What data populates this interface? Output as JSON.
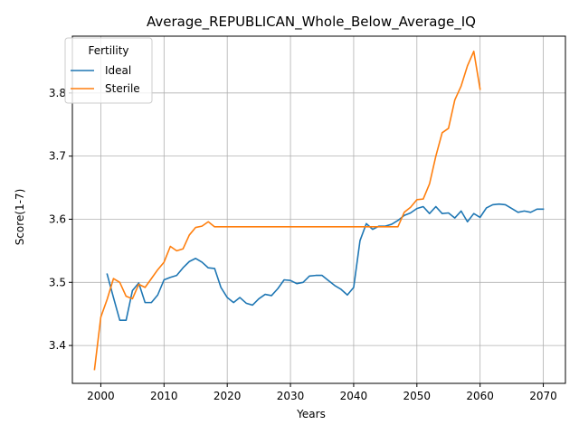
{
  "chart_data": {
    "type": "line",
    "title": "Average_REPUBLICAN_Whole_Below_Average_IQ",
    "xlabel": "Years",
    "ylabel": "Score(1-7)",
    "xlim": [
      1995.5,
      2073.5
    ],
    "ylim": [
      3.34,
      3.89
    ],
    "xticks": [
      2000,
      2010,
      2020,
      2030,
      2040,
      2050,
      2060,
      2070
    ],
    "yticks": [
      3.4,
      3.5,
      3.6,
      3.7,
      3.8
    ],
    "ytick_labels": [
      "3.4",
      "3.5",
      "3.6",
      "3.7",
      "3.8"
    ],
    "grid": true,
    "legend": {
      "title": "Fertility",
      "placement": "top-left"
    },
    "series": [
      {
        "name": "Ideal",
        "color": "#1f77b4",
        "x": [
          2001,
          2002,
          2003,
          2004,
          2005,
          2006,
          2007,
          2008,
          2009,
          2010,
          2011,
          2012,
          2013,
          2014,
          2015,
          2016,
          2017,
          2018,
          2019,
          2020,
          2021,
          2022,
          2023,
          2024,
          2025,
          2026,
          2027,
          2028,
          2029,
          2030,
          2031,
          2032,
          2033,
          2034,
          2035,
          2036,
          2037,
          2038,
          2039,
          2040,
          2041,
          2042,
          2043,
          2044,
          2045,
          2046,
          2047,
          2048,
          2049,
          2050,
          2051,
          2052,
          2053,
          2054,
          2055,
          2056,
          2057,
          2058,
          2059,
          2060,
          2061,
          2062,
          2063,
          2064,
          2065,
          2066,
          2067,
          2068,
          2069,
          2070
        ],
        "y": [
          3.513,
          3.476,
          3.44,
          3.44,
          3.487,
          3.499,
          3.468,
          3.468,
          3.48,
          3.504,
          3.508,
          3.511,
          3.523,
          3.533,
          3.538,
          3.532,
          3.523,
          3.522,
          3.492,
          3.476,
          3.468,
          3.476,
          3.467,
          3.464,
          3.474,
          3.481,
          3.479,
          3.49,
          3.504,
          3.503,
          3.498,
          3.5,
          3.51,
          3.511,
          3.511,
          3.503,
          3.495,
          3.489,
          3.48,
          3.492,
          3.566,
          3.593,
          3.584,
          3.589,
          3.589,
          3.592,
          3.598,
          3.606,
          3.61,
          3.617,
          3.62,
          3.609,
          3.62,
          3.609,
          3.61,
          3.602,
          3.613,
          3.596,
          3.609,
          3.603,
          3.618,
          3.623,
          3.624,
          3.623,
          3.617,
          3.611,
          3.613,
          3.611,
          3.616,
          3.616
        ]
      },
      {
        "name": "Sterile",
        "color": "#ff7f0e",
        "x": [
          1999,
          2000,
          2001,
          2002,
          2003,
          2004,
          2005,
          2006,
          2007,
          2008,
          2009,
          2010,
          2011,
          2012,
          2013,
          2014,
          2015,
          2016,
          2017,
          2018,
          2019,
          2020,
          2021,
          2022,
          2023,
          2024,
          2025,
          2026,
          2027,
          2028,
          2029,
          2030,
          2031,
          2032,
          2033,
          2034,
          2035,
          2036,
          2037,
          2038,
          2039,
          2040,
          2041,
          2042,
          2043,
          2044,
          2045,
          2046,
          2047,
          2048,
          2049,
          2050,
          2051,
          2052,
          2053,
          2054,
          2055,
          2056,
          2057,
          2058,
          2059,
          2060
        ],
        "y": [
          3.362,
          3.445,
          3.473,
          3.506,
          3.5,
          3.478,
          3.474,
          3.497,
          3.492,
          3.506,
          3.52,
          3.532,
          3.557,
          3.55,
          3.553,
          3.575,
          3.587,
          3.589,
          3.596,
          3.588,
          3.588,
          3.588,
          3.588,
          3.588,
          3.588,
          3.588,
          3.588,
          3.588,
          3.588,
          3.588,
          3.588,
          3.588,
          3.588,
          3.588,
          3.588,
          3.588,
          3.588,
          3.588,
          3.588,
          3.588,
          3.588,
          3.588,
          3.588,
          3.588,
          3.588,
          3.588,
          3.588,
          3.588,
          3.588,
          3.611,
          3.619,
          3.631,
          3.632,
          3.656,
          3.7,
          3.737,
          3.744,
          3.789,
          3.811,
          3.843,
          3.866,
          3.806
        ]
      }
    ]
  }
}
